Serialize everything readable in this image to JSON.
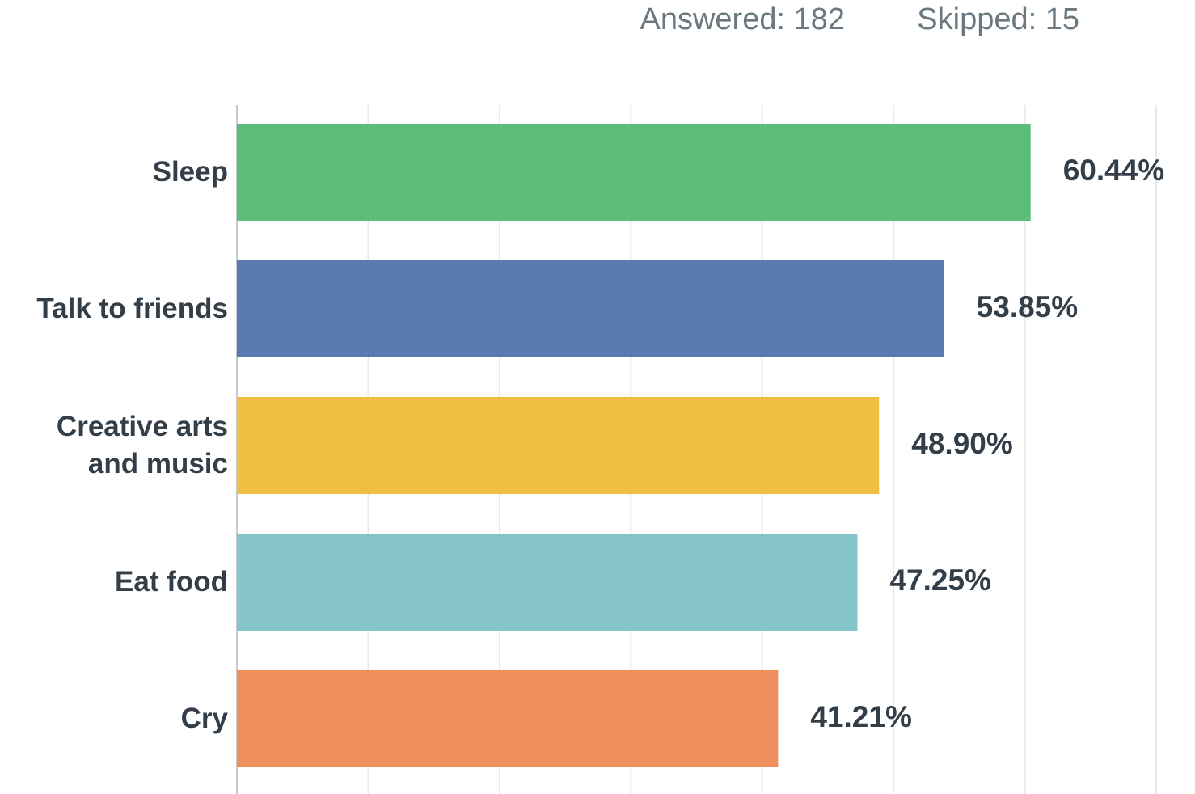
{
  "chart_data": {
    "type": "bar",
    "orientation": "horizontal",
    "header": [
      "Answered: 182",
      "Skipped: 15"
    ],
    "categories": [
      "Sleep",
      "Talk to friends",
      "Creative arts and music",
      "Eat food",
      "Cry"
    ],
    "values": [
      60.44,
      53.85,
      48.9,
      47.25,
      41.21
    ],
    "value_labels": [
      "60.44%",
      "53.85%",
      "48.90%",
      "47.25%",
      "41.21%"
    ],
    "colors": [
      "#5bbd78",
      "#5b7bb0",
      "#efbe43",
      "#85c5ca",
      "#ef8f5e"
    ],
    "xlim": [
      0,
      70
    ],
    "xticks": [
      0,
      10,
      20,
      30,
      40,
      50,
      60,
      70
    ],
    "grid": true
  }
}
